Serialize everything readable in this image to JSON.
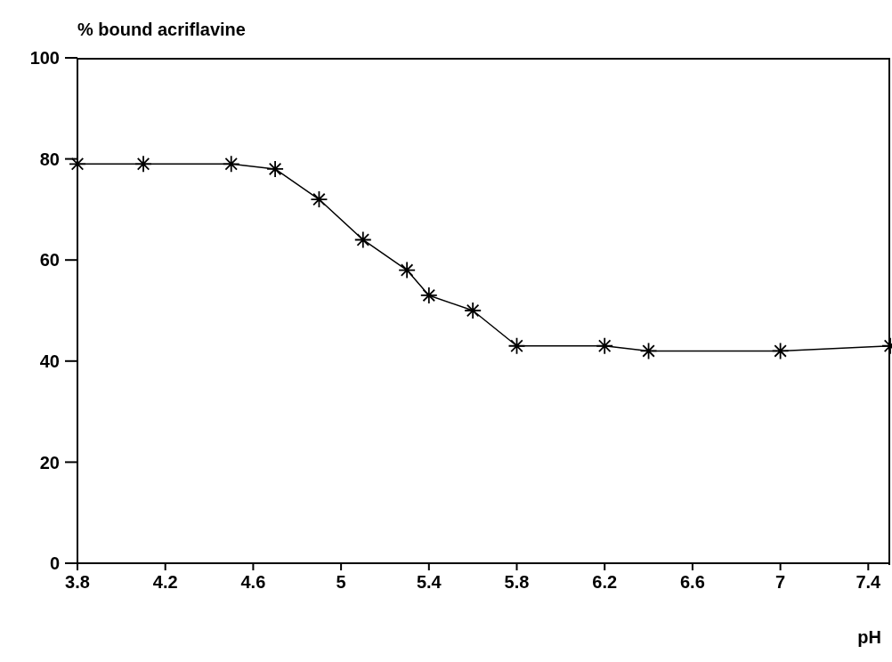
{
  "chart_data": {
    "type": "line",
    "ylabel": "% bound acriflavine",
    "xlabel": "pH",
    "x": [
      3.8,
      4.1,
      4.5,
      4.7,
      4.9,
      5.1,
      5.3,
      5.4,
      5.6,
      5.8,
      6.2,
      6.4,
      7.0,
      7.5
    ],
    "series": [
      {
        "color": "#000000",
        "values": [
          79,
          79,
          79,
          78,
          72,
          64,
          58,
          53,
          50,
          43,
          43,
          42,
          42,
          43
        ]
      }
    ],
    "xlim": [
      3.8,
      7.5
    ],
    "xticks": [
      3.8,
      4.2,
      4.6,
      5,
      5.4,
      5.8,
      6.2,
      6.6,
      7,
      7.4
    ],
    "ylim": [
      0,
      100
    ],
    "yticks": [
      0,
      20,
      40,
      60,
      80,
      100
    ],
    "grid": false,
    "legend": false,
    "marker": "cross",
    "line_style": "solid"
  }
}
